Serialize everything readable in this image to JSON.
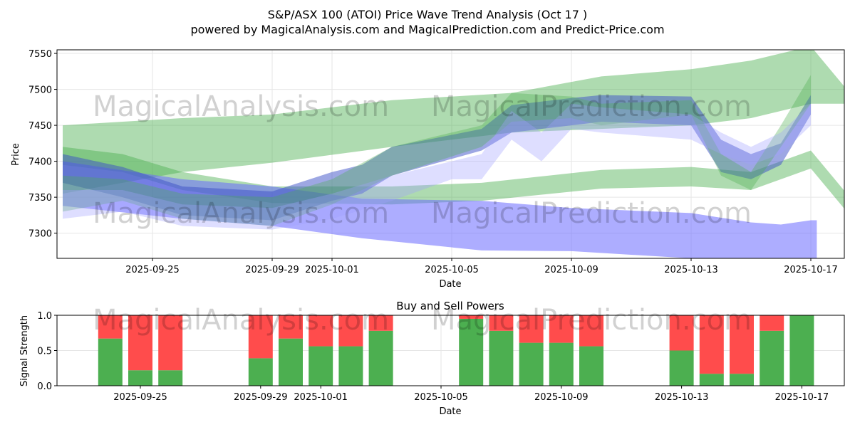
{
  "chart_data": [
    {
      "type": "area",
      "title": "S&P/ASX 100 (ATOI) Price Wave Trend Analysis (Oct 17 )",
      "subtitle": "powered by MagicalAnalysis.com and MagicalPrediction.com and Predict-Price.com",
      "xlabel": "Date",
      "ylabel": "Price",
      "ylim": [
        7265,
        7555
      ],
      "xlim": [
        "2025-09-21.8",
        "2025-10-18.1"
      ],
      "xticks": [
        "2025-09-25",
        "2025-09-29",
        "2025-10-01",
        "2025-10-05",
        "2025-10-09",
        "2025-10-13",
        "2025-10-17"
      ],
      "yticks": [
        7300,
        7350,
        7400,
        7450,
        7500,
        7550
      ],
      "grid": true,
      "watermarks": [
        "MagicalAnalysis.com",
        "MagicalPrediction.com"
      ],
      "bands": [
        {
          "name": "green-wide",
          "color": "#4caf50",
          "opacity": 0.45,
          "x": [
            0,
            4,
            7,
            11,
            15,
            18,
            21,
            23,
            25,
            26.2
          ],
          "upper": [
            7450,
            7460,
            7465,
            7485,
            7495,
            7518,
            7528,
            7540,
            7560,
            7500
          ],
          "lower": [
            7355,
            7385,
            7398,
            7420,
            7440,
            7445,
            7450,
            7460,
            7480,
            7480
          ]
        },
        {
          "name": "green-low",
          "color": "#4caf50",
          "opacity": 0.45,
          "x": [
            0,
            2,
            4,
            7,
            11,
            14,
            18,
            21,
            23,
            25,
            26.2
          ],
          "upper": [
            7420,
            7410,
            7385,
            7365,
            7365,
            7370,
            7388,
            7392,
            7385,
            7415,
            7355
          ],
          "lower": [
            7395,
            7385,
            7360,
            7342,
            7340,
            7345,
            7362,
            7365,
            7360,
            7390,
            7330
          ]
        },
        {
          "name": "blue-low",
          "color": "#6a6aff",
          "opacity": 0.55,
          "x": [
            0,
            4,
            7,
            10,
            14,
            17,
            21,
            23,
            24,
            25,
            25.2
          ],
          "upper": [
            7400,
            7375,
            7365,
            7348,
            7345,
            7335,
            7328,
            7315,
            7312,
            7318,
            7318
          ],
          "lower": [
            7338,
            7320,
            7310,
            7293,
            7276,
            7275,
            7265,
            7265,
            7265,
            7265,
            7265
          ]
        },
        {
          "name": "blue-path",
          "color": "#3c50c8",
          "opacity": 0.5,
          "x": [
            0,
            2,
            4,
            7,
            9,
            10,
            11,
            14,
            15,
            17,
            18,
            21,
            22,
            23,
            24,
            25
          ],
          "upper": [
            7410,
            7392,
            7365,
            7358,
            7385,
            7395,
            7420,
            7445,
            7478,
            7488,
            7492,
            7490,
            7430,
            7410,
            7425,
            7492
          ],
          "lower": [
            7370,
            7350,
            7325,
            7318,
            7345,
            7355,
            7380,
            7415,
            7440,
            7450,
            7455,
            7450,
            7385,
            7375,
            7395,
            7465
          ]
        },
        {
          "name": "green-path",
          "color": "#4caf50",
          "opacity": 0.35,
          "x": [
            0,
            2,
            4,
            7,
            9,
            11,
            14,
            15,
            17,
            18,
            21,
            22,
            23,
            24,
            25
          ],
          "upper": [
            7380,
            7375,
            7355,
            7350,
            7375,
            7420,
            7450,
            7495,
            7490,
            7480,
            7485,
            7410,
            7385,
            7450,
            7520
          ],
          "lower": [
            7330,
            7345,
            7320,
            7310,
            7340,
            7380,
            7420,
            7455,
            7460,
            7450,
            7465,
            7380,
            7360,
            7420,
            7480
          ]
        },
        {
          "name": "lavender-path",
          "color": "#a0a0ff",
          "opacity": 0.35,
          "x": [
            0,
            2,
            4,
            7,
            9,
            11,
            13,
            14,
            15,
            16,
            17,
            18,
            21,
            22,
            23,
            24,
            25
          ],
          "upper": [
            7360,
            7360,
            7340,
            7335,
            7355,
            7380,
            7400,
            7410,
            7470,
            7440,
            7480,
            7475,
            7465,
            7440,
            7420,
            7440,
            7480
          ],
          "lower": [
            7320,
            7330,
            7310,
            7305,
            7320,
            7345,
            7375,
            7375,
            7430,
            7400,
            7445,
            7440,
            7430,
            7410,
            7395,
            7410,
            7450
          ]
        }
      ]
    },
    {
      "type": "bar",
      "title": "Buy and Sell Powers",
      "xlabel": "Date",
      "ylabel": "Signal Strength",
      "ylim": [
        0,
        1
      ],
      "yticks": [
        "0.0",
        "0.5",
        "1.0"
      ],
      "xticks": [
        "2025-09-25",
        "2025-09-29",
        "2025-10-01",
        "2025-10-05",
        "2025-10-09",
        "2025-10-13",
        "2025-10-17"
      ],
      "categories": [
        "2025-09-24",
        "2025-09-25",
        "2025-09-26",
        "2025-09-29",
        "2025-09-30",
        "2025-10-01",
        "2025-10-02",
        "2025-10-03",
        "2025-10-06",
        "2025-10-07",
        "2025-10-08",
        "2025-10-09",
        "2025-10-10",
        "2025-10-13",
        "2025-10-14",
        "2025-10-15",
        "2025-10-16",
        "2025-10-17"
      ],
      "series": [
        {
          "name": "Buy",
          "color": "#4caf50",
          "values": [
            0.67,
            0.22,
            0.22,
            0.39,
            0.67,
            0.56,
            0.56,
            0.78,
            0.95,
            0.78,
            0.61,
            0.61,
            0.56,
            0.5,
            0.17,
            0.17,
            0.78,
            1.0
          ]
        },
        {
          "name": "Sell",
          "color": "#ff4c4c",
          "values": [
            0.33,
            0.78,
            0.78,
            0.61,
            0.33,
            0.44,
            0.44,
            0.22,
            0.05,
            0.22,
            0.39,
            0.39,
            0.44,
            0.5,
            0.83,
            0.83,
            0.22,
            0.0
          ]
        }
      ]
    }
  ]
}
